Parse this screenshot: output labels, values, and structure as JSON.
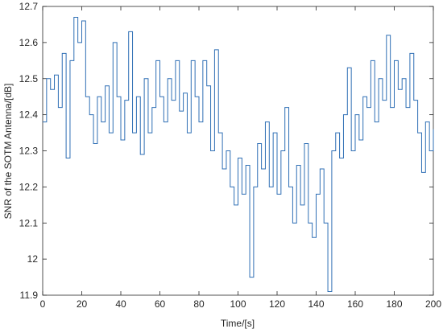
{
  "chart_data": {
    "type": "stairs",
    "xlabel": "Time/[s]",
    "ylabel": "SNR of the SOTM Antenna/[dB]",
    "color": "#2f6fb5",
    "xlim": [
      0,
      200
    ],
    "xticks": [
      0,
      20,
      40,
      60,
      80,
      100,
      120,
      140,
      160,
      180,
      200
    ],
    "ylim": [
      11.9,
      12.7
    ],
    "yticks": [
      11.9,
      12,
      12.1,
      12.2,
      12.3,
      12.4,
      12.5,
      12.6,
      12.7
    ],
    "x": [
      0,
      2,
      4,
      6,
      8,
      10,
      12,
      14,
      16,
      18,
      20,
      22,
      24,
      26,
      28,
      30,
      32,
      34,
      36,
      38,
      40,
      42,
      44,
      46,
      48,
      50,
      52,
      54,
      56,
      58,
      60,
      62,
      64,
      66,
      68,
      70,
      72,
      74,
      76,
      78,
      80,
      82,
      84,
      86,
      88,
      90,
      92,
      94,
      96,
      98,
      100,
      102,
      104,
      106,
      108,
      110,
      112,
      114,
      116,
      118,
      120,
      122,
      124,
      126,
      128,
      130,
      132,
      134,
      136,
      138,
      140,
      142,
      144,
      146,
      148,
      150,
      152,
      154,
      156,
      158,
      160,
      162,
      164,
      166,
      168,
      170,
      172,
      174,
      176,
      178,
      180,
      182,
      184,
      186,
      188,
      190,
      192,
      194,
      196,
      198,
      200
    ],
    "values": [
      12.38,
      12.5,
      12.47,
      12.51,
      12.42,
      12.57,
      12.28,
      12.55,
      12.67,
      12.6,
      12.66,
      12.45,
      12.4,
      12.32,
      12.45,
      12.38,
      12.48,
      12.35,
      12.6,
      12.45,
      12.33,
      12.44,
      12.63,
      12.35,
      12.45,
      12.29,
      12.5,
      12.35,
      12.42,
      12.55,
      12.45,
      12.38,
      12.5,
      12.44,
      12.55,
      12.41,
      12.46,
      12.35,
      12.55,
      12.45,
      12.38,
      12.55,
      12.48,
      12.3,
      12.58,
      12.35,
      12.25,
      12.3,
      12.2,
      12.15,
      12.28,
      12.18,
      12.26,
      11.95,
      12.2,
      12.32,
      12.25,
      12.38,
      12.2,
      12.35,
      12.18,
      12.3,
      12.42,
      12.2,
      12.1,
      12.26,
      12.15,
      12.32,
      12.1,
      12.06,
      12.18,
      12.25,
      12.1,
      11.91,
      12.3,
      12.35,
      12.28,
      12.4,
      12.53,
      12.3,
      12.4,
      12.33,
      12.45,
      12.42,
      12.55,
      12.38,
      12.5,
      12.44,
      12.62,
      12.42,
      12.55,
      12.47,
      12.5,
      12.42,
      12.57,
      12.44,
      12.35,
      12.24,
      12.38,
      12.3,
      12.36
    ]
  }
}
